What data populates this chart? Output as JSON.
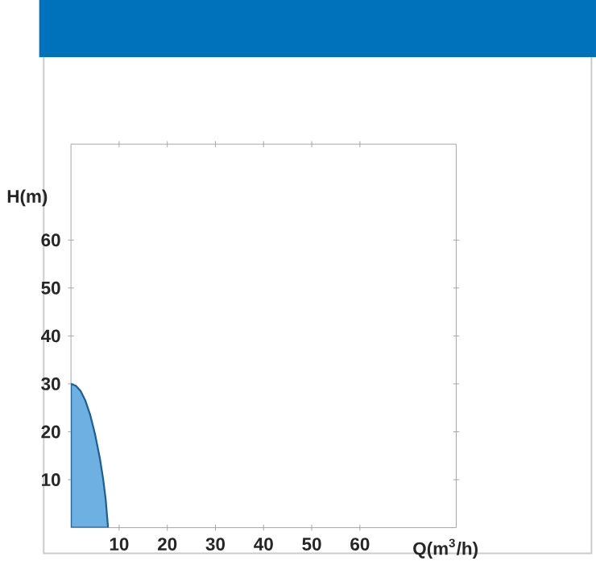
{
  "chart_data": {
    "type": "area",
    "xlabel": "Q(m$^{3}$/h)",
    "ylabel": "H(m)",
    "x": [
      0,
      1,
      2,
      3,
      4,
      5,
      6,
      6.7,
      7.2,
      7.7
    ],
    "series": [
      {
        "color": "#6fb0e3",
        "values": [
          30,
          29.6,
          28.5,
          26.5,
          23.5,
          19.5,
          14.5,
          10,
          6,
          0
        ]
      }
    ],
    "xlim": [
      0,
      80
    ],
    "ylim": [
      0,
      80
    ],
    "xticks": [
      10,
      20,
      30,
      40,
      50,
      60
    ],
    "yticks": [
      10,
      20,
      30,
      40,
      50,
      60
    ]
  }
}
